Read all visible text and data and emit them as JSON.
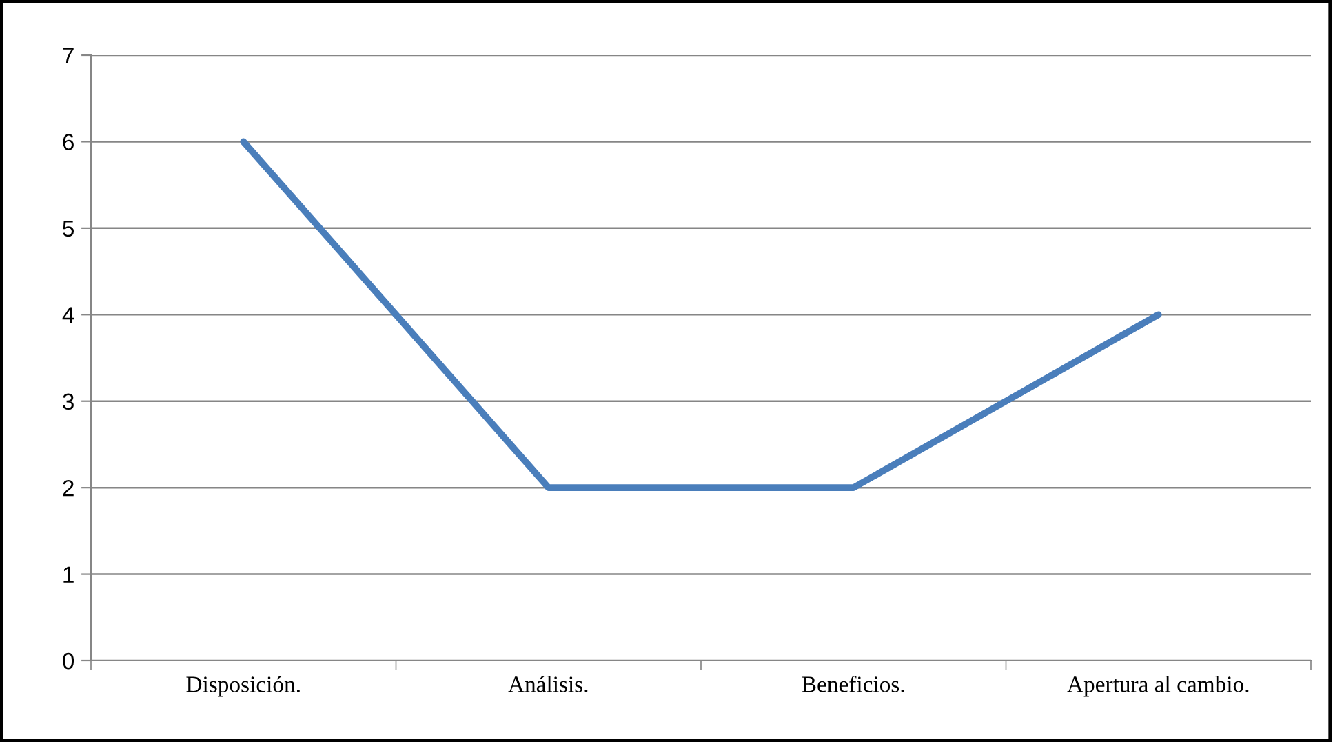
{
  "chart_data": {
    "type": "line",
    "categories": [
      "Disposición.",
      "Análisis.",
      "Beneficios.",
      "Apertura al cambio."
    ],
    "values": [
      6,
      2,
      2,
      4
    ],
    "color": "#4a7ebb",
    "marker": "none",
    "line_style": "solid",
    "ylim": [
      0,
      7
    ],
    "yticks": [
      0,
      1,
      2,
      3,
      4,
      5,
      6,
      7
    ],
    "grid": "y",
    "legend": false
  }
}
